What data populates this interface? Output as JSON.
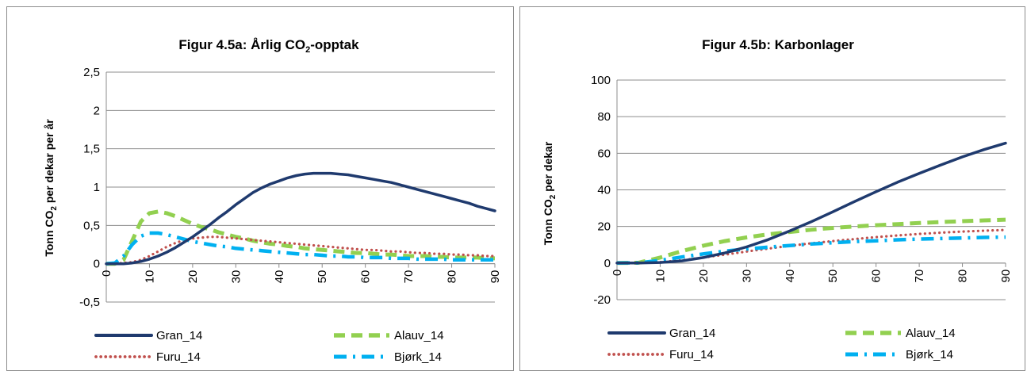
{
  "chart_data": [
    {
      "type": "line",
      "title": {
        "prefix": "Figur 4.5a: Årlig CO",
        "sub": "2",
        "suffix": "-opptak"
      },
      "ylabel": {
        "prefix": "Tonn CO",
        "sub": "2",
        "suffix": " per dekar per år"
      },
      "xlabel": "",
      "x_ticks": [
        "0",
        "10",
        "20",
        "30",
        "40",
        "50",
        "60",
        "70",
        "80",
        "90"
      ],
      "y_ticks": [
        "-0,5",
        "0",
        "0,5",
        "1",
        "1,5",
        "2",
        "2,5"
      ],
      "xlim": [
        0,
        90
      ],
      "ylim": [
        -0.5,
        2.5
      ],
      "grid": true,
      "legend_position": "bottom",
      "x": [
        0,
        2,
        4,
        6,
        8,
        10,
        12,
        14,
        16,
        18,
        20,
        22,
        24,
        26,
        28,
        30,
        32,
        34,
        36,
        38,
        40,
        42,
        44,
        46,
        48,
        50,
        52,
        54,
        56,
        58,
        60,
        62,
        64,
        66,
        68,
        70,
        72,
        74,
        76,
        78,
        80,
        82,
        84,
        86,
        88,
        90
      ],
      "series": [
        {
          "name": "Gran_14",
          "color": "#1f3a6e",
          "style": "solid",
          "values": [
            0,
            0,
            0,
            0.01,
            0.03,
            0.06,
            0.1,
            0.15,
            0.21,
            0.28,
            0.35,
            0.43,
            0.51,
            0.6,
            0.68,
            0.77,
            0.85,
            0.93,
            0.99,
            1.04,
            1.08,
            1.12,
            1.15,
            1.17,
            1.18,
            1.18,
            1.18,
            1.17,
            1.16,
            1.14,
            1.12,
            1.1,
            1.08,
            1.06,
            1.03,
            1.0,
            0.97,
            0.94,
            0.91,
            0.88,
            0.85,
            0.82,
            0.79,
            0.75,
            0.72,
            0.69
          ]
        },
        {
          "name": "Alauv_14",
          "color": "#92d050",
          "style": "dash",
          "values": [
            0,
            0,
            0.05,
            0.3,
            0.55,
            0.66,
            0.68,
            0.66,
            0.62,
            0.57,
            0.52,
            0.48,
            0.45,
            0.41,
            0.38,
            0.35,
            0.33,
            0.3,
            0.28,
            0.26,
            0.25,
            0.23,
            0.22,
            0.2,
            0.19,
            0.18,
            0.17,
            0.16,
            0.15,
            0.14,
            0.14,
            0.13,
            0.12,
            0.12,
            0.11,
            0.1,
            0.1,
            0.1,
            0.09,
            0.09,
            0.08,
            0.08,
            0.08,
            0.08,
            0.07,
            0.07
          ]
        },
        {
          "name": "Furu_14",
          "color": "#c0504d",
          "style": "dot",
          "values": [
            0,
            0,
            0.01,
            0.02,
            0.05,
            0.1,
            0.16,
            0.22,
            0.27,
            0.31,
            0.33,
            0.34,
            0.35,
            0.35,
            0.34,
            0.33,
            0.32,
            0.31,
            0.3,
            0.29,
            0.28,
            0.27,
            0.26,
            0.25,
            0.24,
            0.23,
            0.22,
            0.21,
            0.2,
            0.19,
            0.18,
            0.18,
            0.17,
            0.16,
            0.16,
            0.15,
            0.14,
            0.14,
            0.13,
            0.13,
            0.12,
            0.12,
            0.11,
            0.11,
            0.1,
            0.1
          ]
        },
        {
          "name": "Bjørk_14",
          "color": "#00b0f0",
          "style": "dashdot",
          "values": [
            0,
            0.01,
            0.1,
            0.25,
            0.36,
            0.4,
            0.4,
            0.38,
            0.35,
            0.32,
            0.29,
            0.27,
            0.25,
            0.23,
            0.22,
            0.2,
            0.19,
            0.18,
            0.17,
            0.16,
            0.15,
            0.14,
            0.13,
            0.12,
            0.12,
            0.11,
            0.1,
            0.1,
            0.09,
            0.09,
            0.08,
            0.08,
            0.08,
            0.07,
            0.07,
            0.07,
            0.06,
            0.06,
            0.06,
            0.06,
            0.05,
            0.05,
            0.05,
            0.05,
            0.05,
            0.05
          ]
        }
      ]
    },
    {
      "type": "line",
      "title": {
        "prefix": "Figur 4.5b: Karbonlager",
        "sub": "",
        "suffix": ""
      },
      "ylabel": {
        "prefix": "Tonn CO",
        "sub": "2",
        "suffix": " per dekar"
      },
      "xlabel": "",
      "x_ticks": [
        "0",
        "10",
        "20",
        "30",
        "40",
        "50",
        "60",
        "70",
        "80",
        "90"
      ],
      "y_ticks": [
        "-20",
        "0",
        "20",
        "40",
        "60",
        "80",
        "100"
      ],
      "xlim": [
        0,
        90
      ],
      "ylim": [
        -20,
        100
      ],
      "grid": true,
      "legend_position": "bottom",
      "x": [
        0,
        5,
        10,
        15,
        20,
        25,
        30,
        35,
        40,
        45,
        50,
        55,
        60,
        65,
        70,
        75,
        80,
        85,
        90
      ],
      "series": [
        {
          "name": "Gran_14",
          "color": "#1f3a6e",
          "style": "solid",
          "values": [
            0,
            0,
            0.3,
            1.2,
            3,
            5.5,
            8.8,
            12.8,
            17.5,
            22.6,
            28,
            33.6,
            39,
            44.2,
            49,
            53.6,
            58,
            62,
            65.5
          ]
        },
        {
          "name": "Alauv_14",
          "color": "#92d050",
          "style": "dash",
          "values": [
            0,
            0.2,
            3,
            6.5,
            9.5,
            12,
            14,
            15.7,
            17,
            18.2,
            19.2,
            20,
            20.7,
            21.3,
            21.9,
            22.4,
            22.9,
            23.3,
            23.7
          ]
        },
        {
          "name": "Furu_14",
          "color": "#c0504d",
          "style": "dot",
          "values": [
            0,
            0,
            0.5,
            1.5,
            3,
            4.6,
            6.3,
            7.9,
            9.4,
            10.8,
            12,
            13.1,
            14.2,
            15.1,
            15.9,
            16.6,
            17.2,
            17.7,
            18.1
          ]
        },
        {
          "name": "Bjørk_14",
          "color": "#00b0f0",
          "style": "dashdot",
          "values": [
            0,
            0.1,
            1.5,
            3.3,
            5,
            6.5,
            7.7,
            8.7,
            9.6,
            10.4,
            11.1,
            11.7,
            12.2,
            12.7,
            13.1,
            13.4,
            13.7,
            14,
            14.2
          ]
        }
      ]
    }
  ]
}
